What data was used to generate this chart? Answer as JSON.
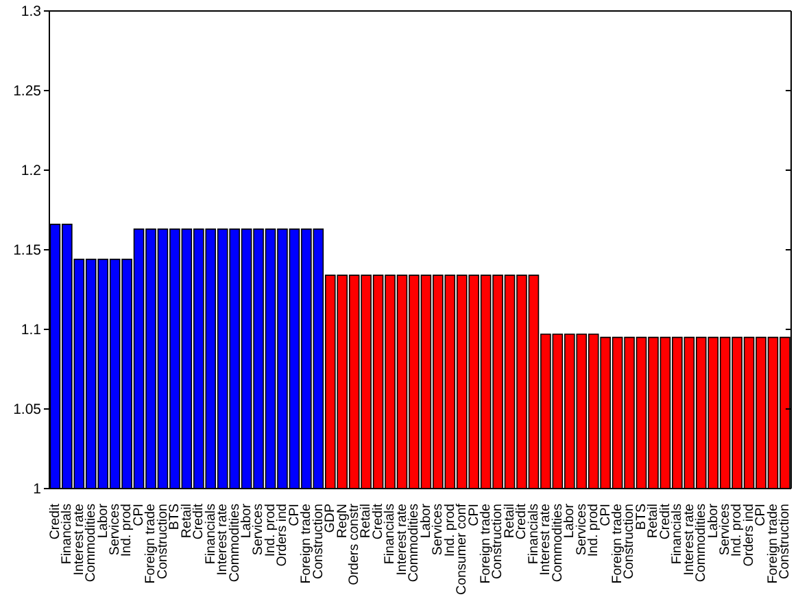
{
  "chart_data": {
    "type": "bar",
    "categories": [
      "Credit",
      "Financials",
      "Interest rate",
      "Commodities",
      "Labor",
      "Services",
      "Ind. prod",
      "CPI",
      "Foreign trade",
      "Construction",
      "BTS",
      "Retail",
      "Credit",
      "Financials",
      "Interest rate",
      "Commodities",
      "Labor",
      "Services",
      "Ind. prod",
      "Orders ind",
      "CPI",
      "Foreign trade",
      "Construction",
      "GDP",
      "RegN",
      "Orders constr",
      "Retail",
      "Credit",
      "Financials",
      "Interest rate",
      "Commodities",
      "Labor",
      "Services",
      "Ind. prod",
      "Consumer conf",
      "CPI",
      "Foreign trade",
      "Construction",
      "Retail",
      "Credit",
      "Financials",
      "Interest rate",
      "Commodities",
      "Labor",
      "Services",
      "Ind. prod",
      "CPI",
      "Foreign trade",
      "Construction",
      "BTS",
      "Retail",
      "Credit",
      "Financials",
      "Interest rate",
      "Commodities",
      "Labor",
      "Services",
      "Ind. prod",
      "Orders ind",
      "CPI",
      "Foreign trade",
      "Construction"
    ],
    "values": [
      1.166,
      1.166,
      1.144,
      1.144,
      1.144,
      1.144,
      1.144,
      1.163,
      1.163,
      1.163,
      1.163,
      1.163,
      1.163,
      1.163,
      1.163,
      1.163,
      1.163,
      1.163,
      1.163,
      1.163,
      1.163,
      1.163,
      1.163,
      1.134,
      1.134,
      1.134,
      1.134,
      1.134,
      1.134,
      1.134,
      1.134,
      1.134,
      1.134,
      1.134,
      1.134,
      1.134,
      1.134,
      1.134,
      1.134,
      1.134,
      1.134,
      1.097,
      1.097,
      1.097,
      1.097,
      1.097,
      1.095,
      1.095,
      1.095,
      1.095,
      1.095,
      1.095,
      1.095,
      1.095,
      1.095,
      1.095,
      1.095,
      1.095,
      1.095,
      1.095,
      1.095,
      1.095
    ],
    "colors": [
      "#0000ff",
      "#0000ff",
      "#0000ff",
      "#0000ff",
      "#0000ff",
      "#0000ff",
      "#0000ff",
      "#0000ff",
      "#0000ff",
      "#0000ff",
      "#0000ff",
      "#0000ff",
      "#0000ff",
      "#0000ff",
      "#0000ff",
      "#0000ff",
      "#0000ff",
      "#0000ff",
      "#0000ff",
      "#0000ff",
      "#0000ff",
      "#0000ff",
      "#0000ff",
      "#ff0000",
      "#ff0000",
      "#ff0000",
      "#ff0000",
      "#ff0000",
      "#ff0000",
      "#ff0000",
      "#ff0000",
      "#ff0000",
      "#ff0000",
      "#ff0000",
      "#ff0000",
      "#ff0000",
      "#ff0000",
      "#ff0000",
      "#ff0000",
      "#ff0000",
      "#ff0000",
      "#ff0000",
      "#ff0000",
      "#ff0000",
      "#ff0000",
      "#ff0000",
      "#ff0000",
      "#ff0000",
      "#ff0000",
      "#ff0000",
      "#ff0000",
      "#ff0000",
      "#ff0000",
      "#ff0000",
      "#ff0000",
      "#ff0000",
      "#ff0000",
      "#ff0000",
      "#ff0000",
      "#ff0000",
      "#ff0000",
      "#ff0000"
    ],
    "ylim": [
      1,
      1.3
    ],
    "yticks": [
      1,
      1.05,
      1.1,
      1.15,
      1.2,
      1.25,
      1.3
    ],
    "grid": false,
    "legend": false
  }
}
